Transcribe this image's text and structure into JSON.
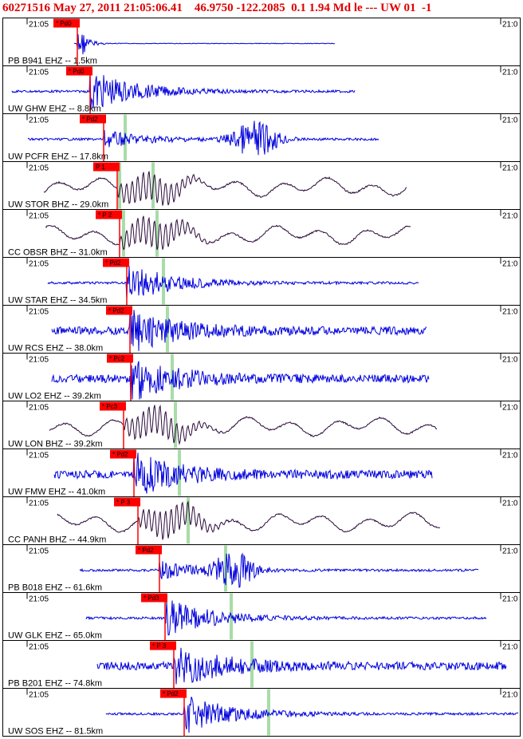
{
  "header": {
    "title": "60271516 May 27, 2011 21:05:06.41    46.9750 -122.2085  0.1 1.94 Md le --- UW 01  -1"
  },
  "colors": {
    "header_text": "#e00000",
    "trace_blue": "#0000dd",
    "trace_purple": "#2a0a3a",
    "pick_box": "#ff0000",
    "pick_line": "#ff0000",
    "green_marker": "#a8dca8",
    "frame": "#000000"
  },
  "time_label": "21:05",
  "chart_data": {
    "type": "seismogram",
    "panels": [
      {
        "label": "PB B941 EHZ -- 1.5km",
        "pick": "* Pd0",
        "color": "blue",
        "style": "decay"
      },
      {
        "label": "UW GHW EHZ -- 8.8km",
        "pick": "* Pd0",
        "color": "blue",
        "style": "burst"
      },
      {
        "label": "UW PCFR EHZ -- 17.8km",
        "pick": "* Pd2",
        "color": "blue",
        "style": "two-burst"
      },
      {
        "label": "UW STOR BHZ -- 29.0km",
        "pick": "P 1",
        "color": "purple",
        "style": "long"
      },
      {
        "label": "CC OBSR BHZ -- 31.0km",
        "pick": "* P 2",
        "color": "purple",
        "style": "long"
      },
      {
        "label": "UW STAR EHZ -- 34.5km",
        "pick": "* Pd2",
        "color": "blue",
        "style": "burst"
      },
      {
        "label": "UW RCS EHZ -- 38.0km",
        "pick": "* Pd2",
        "color": "blue",
        "style": "noisy"
      },
      {
        "label": "UW LO2 EHZ -- 39.2km",
        "pick": "* Pc2",
        "color": "blue",
        "style": "noisy"
      },
      {
        "label": "UW LON BHZ -- 39.2km",
        "pick": "* Pc3",
        "color": "purple",
        "style": "long"
      },
      {
        "label": "UW FMW EHZ -- 41.0km",
        "pick": "* Pd2",
        "color": "blue",
        "style": "noisy"
      },
      {
        "label": "CC PANH BHZ -- 44.9km",
        "pick": "* P 3",
        "color": "purple",
        "style": "long"
      },
      {
        "label": "PB B018 EHZ -- 61.6km",
        "pick": "* Pd2",
        "color": "blue",
        "style": "late-burst"
      },
      {
        "label": "UW GLK EHZ -- 65.0km",
        "pick": "* Pd3",
        "color": "blue",
        "style": "burst"
      },
      {
        "label": "PB B201 EHZ -- 74.8km",
        "pick": "* P 3",
        "color": "blue",
        "style": "noisy"
      },
      {
        "label": "UW SOS EHZ -- 81.5km",
        "pick": "* Pd2",
        "color": "blue",
        "style": "burst"
      }
    ]
  }
}
